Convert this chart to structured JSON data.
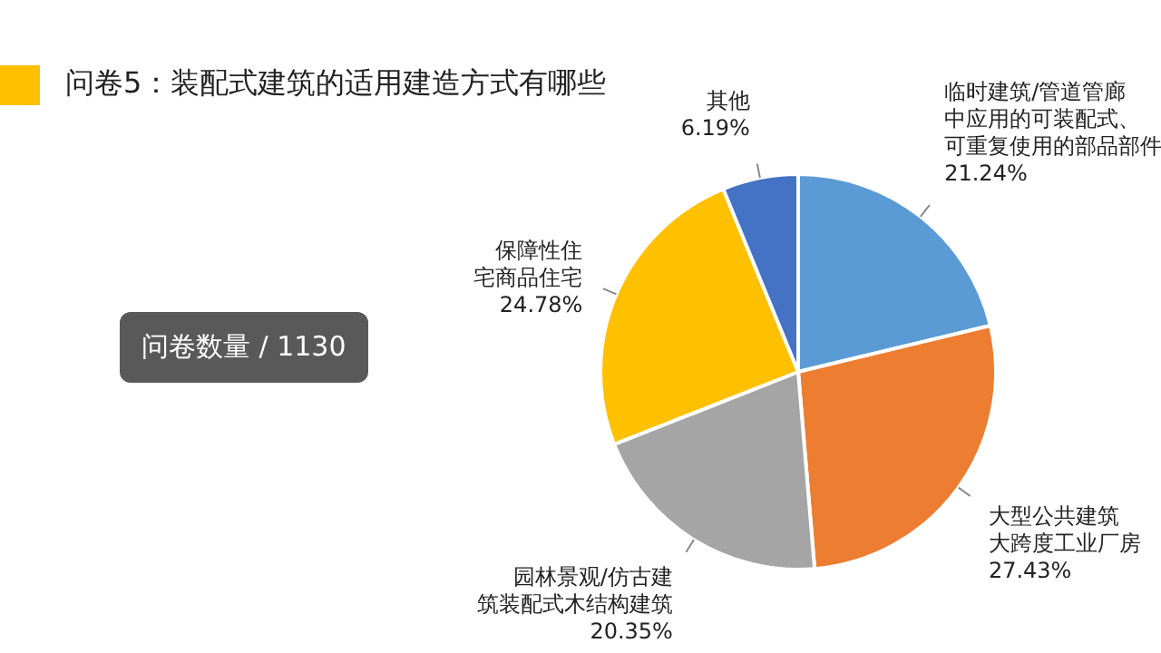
{
  "chart_data": {
    "type": "pie",
    "title": "问卷5：装配式建筑的适用建造方式有哪些",
    "categories": [
      "临时建筑/管道管廊中应用的可装配式、可重复使用的部品部件",
      "大型公共建筑大跨度工业厂房",
      "园林景观/仿古建筑装配式木结构建筑",
      "保障性住宅商品住宅",
      "其他"
    ],
    "values": [
      21.24,
      27.43,
      20.35,
      24.78,
      6.19
    ],
    "value_labels": [
      "21.24%",
      "27.43%",
      "20.35%",
      "24.78%",
      "6.19%"
    ],
    "colors": [
      "#5b9bd5",
      "#ed7d31",
      "#a5a5a5",
      "#ffc000",
      "#4472c4"
    ],
    "annotations": [
      "问卷数量 / 1130"
    ],
    "legend": false
  }
}
